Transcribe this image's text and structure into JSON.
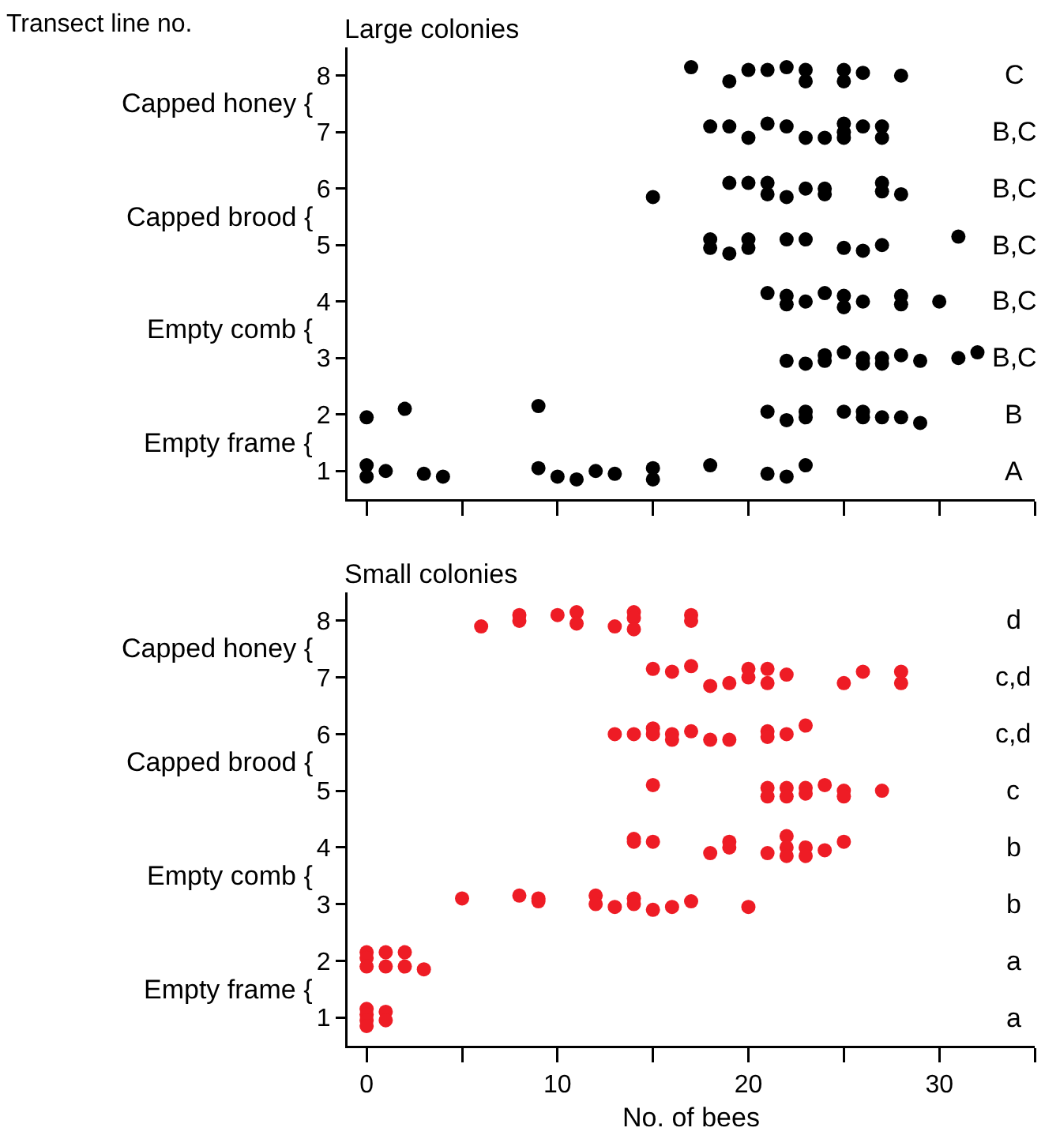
{
  "chart_data": [
    {
      "type": "scatter",
      "title": "Large colonies",
      "ylabel": "Transect line no.",
      "marker": "circle",
      "tick_labels": "y",
      "xlim": [
        -1,
        35
      ],
      "xticks": [
        0,
        {
          "value": 5,
          "label": null
        },
        {
          "value": 10,
          "label": null
        },
        {
          "value": 15,
          "label": null
        },
        {
          "value": 20,
          "label": null
        },
        {
          "value": 25,
          "label": null
        },
        {
          "value": 30,
          "label": null
        },
        {
          "value": 35,
          "label": null
        }
      ],
      "ylim": [
        0.5,
        8.5
      ],
      "yticks": [
        1,
        2,
        3,
        4,
        5,
        6,
        7,
        8
      ],
      "series": [
        {
          "color": "#000000",
          "x": [
            17,
            19,
            20,
            21,
            22,
            23,
            23,
            25,
            25,
            26,
            28,
            18,
            19,
            20,
            21,
            22,
            23,
            24,
            25,
            25,
            25,
            26,
            27,
            27,
            15,
            19,
            20,
            21,
            21,
            22,
            23,
            24,
            24,
            27,
            27,
            28,
            18,
            18,
            19,
            20,
            20,
            22,
            23,
            25,
            26,
            27,
            31,
            21,
            22,
            22,
            23,
            24,
            25,
            25,
            26,
            28,
            28,
            30,
            22,
            23,
            24,
            24,
            25,
            26,
            26,
            27,
            27,
            28,
            29,
            31,
            32,
            0,
            2,
            9,
            21,
            22,
            23,
            23,
            25,
            26,
            26,
            27,
            28,
            29,
            0,
            0,
            1,
            3,
            4,
            9,
            10,
            11,
            12,
            13,
            15,
            15,
            18,
            21,
            22,
            23
          ],
          "values": [
            8.15,
            7.9,
            8.1,
            8.1,
            8.15,
            8.1,
            7.9,
            8.1,
            7.9,
            8.05,
            8.0,
            7.1,
            7.1,
            6.9,
            7.15,
            7.1,
            6.9,
            6.9,
            7.15,
            7.0,
            6.9,
            7.1,
            7.1,
            6.9,
            5.85,
            6.1,
            6.1,
            6.1,
            5.9,
            5.85,
            6.0,
            6.0,
            5.9,
            6.1,
            5.95,
            5.9,
            5.1,
            4.95,
            4.85,
            5.1,
            4.95,
            5.1,
            5.1,
            4.95,
            4.9,
            5.0,
            5.15,
            4.15,
            4.1,
            3.95,
            4.0,
            4.15,
            4.1,
            3.9,
            4.0,
            4.1,
            3.95,
            4.0,
            2.95,
            2.9,
            3.05,
            2.95,
            3.1,
            3.0,
            2.9,
            3.0,
            2.9,
            3.05,
            2.95,
            3.0,
            3.1,
            1.95,
            2.1,
            2.15,
            2.05,
            1.9,
            2.05,
            1.95,
            2.05,
            2.05,
            1.95,
            1.95,
            1.95,
            1.85,
            1.1,
            0.9,
            1.0,
            0.95,
            0.9,
            1.05,
            0.9,
            0.85,
            1.0,
            0.95,
            1.05,
            0.85,
            1.1,
            0.95,
            0.9,
            1.1
          ]
        }
      ],
      "annotations": [
        "Empty frame {",
        "Empty comb {",
        "Capped brood {",
        "Capped honey {",
        "A",
        "B",
        "B,C",
        "B,C",
        "B,C",
        "B,C",
        "B,C",
        "C"
      ]
    },
    {
      "type": "scatter",
      "title": "Small colonies",
      "xlabel": "No. of bees",
      "marker": "circle",
      "xlim": [
        -1,
        35
      ],
      "xticks": [
        0,
        {
          "value": 5,
          "label": null
        },
        10,
        {
          "value": 15,
          "label": null
        },
        20,
        {
          "value": 25,
          "label": null
        },
        30,
        {
          "value": 35,
          "label": null
        }
      ],
      "ylim": [
        0.5,
        8.5
      ],
      "yticks": [
        1,
        2,
        3,
        4,
        5,
        6,
        7,
        8
      ],
      "series": [
        {
          "color": "#ee1c25",
          "x": [
            6,
            8,
            8,
            10,
            11,
            11,
            13,
            14,
            14,
            14,
            17,
            17,
            15,
            16,
            17,
            18,
            19,
            20,
            20,
            21,
            21,
            22,
            25,
            26,
            28,
            28,
            13,
            14,
            15,
            15,
            16,
            16,
            17,
            18,
            19,
            21,
            21,
            22,
            23,
            15,
            21,
            21,
            22,
            22,
            23,
            23,
            24,
            25,
            25,
            27,
            14,
            14,
            15,
            18,
            19,
            19,
            21,
            22,
            22,
            22,
            23,
            23,
            24,
            25,
            5,
            8,
            9,
            9,
            12,
            12,
            13,
            14,
            14,
            15,
            16,
            17,
            20,
            0,
            0,
            0,
            1,
            1,
            2,
            2,
            3,
            0,
            0,
            0,
            0,
            1,
            1
          ],
          "values": [
            7.9,
            8.1,
            8.0,
            8.1,
            8.15,
            7.95,
            7.9,
            8.15,
            8.05,
            7.85,
            8.1,
            8.0,
            7.15,
            7.1,
            7.2,
            6.85,
            6.9,
            7.15,
            7.0,
            7.15,
            6.9,
            7.05,
            6.9,
            7.1,
            7.1,
            6.9,
            6.0,
            6.0,
            6.1,
            6.0,
            6.0,
            5.9,
            6.05,
            5.9,
            5.9,
            6.05,
            5.95,
            6.0,
            6.15,
            5.1,
            5.05,
            4.9,
            5.05,
            4.9,
            5.05,
            4.95,
            5.1,
            5.0,
            4.9,
            5.0,
            4.15,
            4.1,
            4.1,
            3.9,
            4.1,
            4.0,
            3.9,
            4.2,
            4.0,
            3.85,
            4.0,
            3.85,
            3.95,
            4.1,
            3.1,
            3.15,
            3.1,
            3.05,
            3.15,
            3.0,
            2.95,
            3.1,
            3.0,
            2.9,
            2.95,
            3.05,
            2.95,
            2.15,
            2.05,
            1.9,
            2.15,
            1.9,
            2.15,
            1.9,
            1.85,
            1.15,
            1.05,
            0.95,
            0.85,
            1.1,
            0.95
          ]
        }
      ],
      "annotations": [
        "Empty frame {",
        "Empty comb {",
        "Capped brood {",
        "Capped honey {",
        "a",
        "a",
        "b",
        "b",
        "c",
        "c,d",
        "c,d",
        "d"
      ]
    }
  ]
}
